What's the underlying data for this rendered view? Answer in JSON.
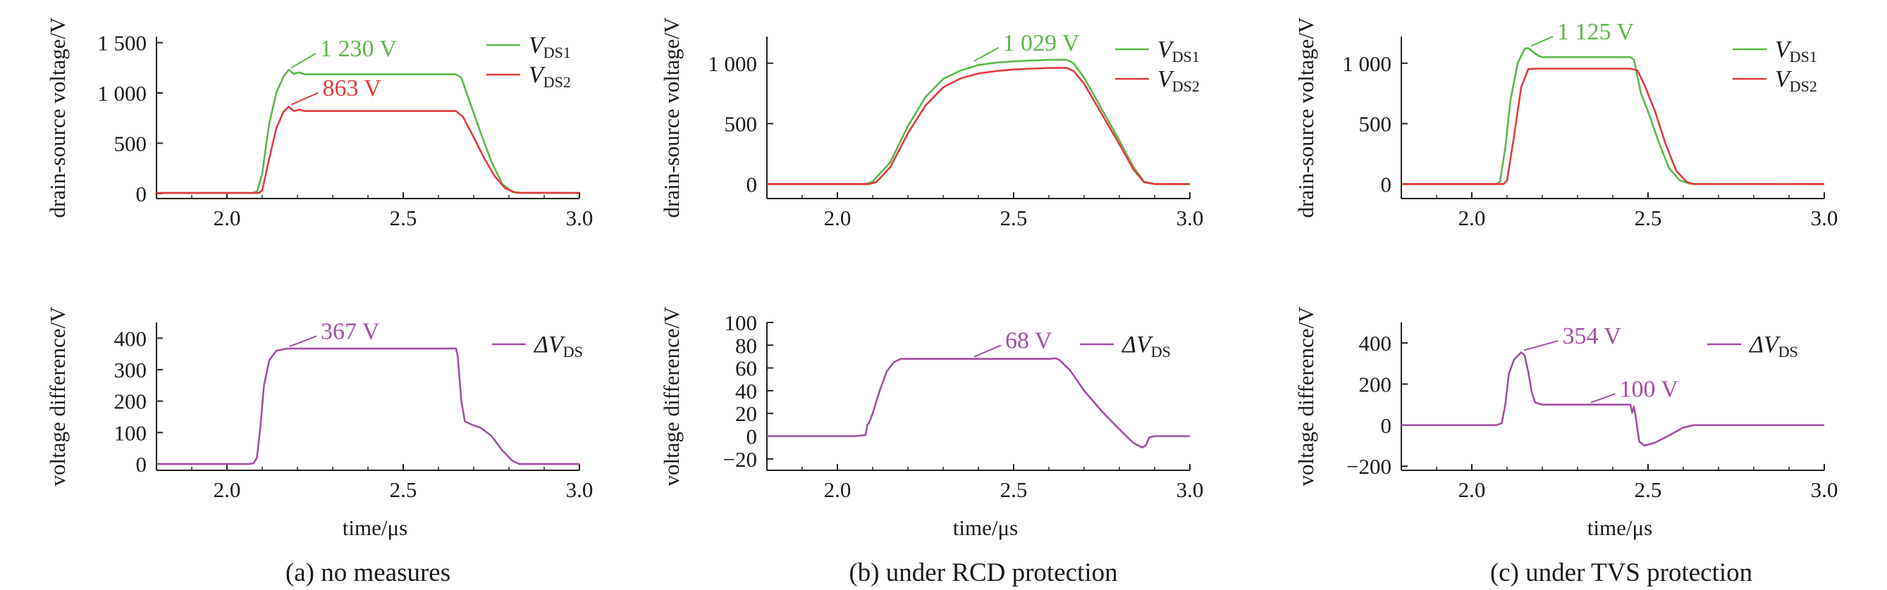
{
  "chart_data": [
    {
      "type": "line",
      "panel": "a",
      "ylabel": "drain-source voltage/V",
      "xlim": [
        1.8,
        3.0
      ],
      "ylim": [
        -50,
        1560
      ],
      "x_ticks": [
        "2.0",
        "2.5",
        "3.0"
      ],
      "x_tick_values": [
        2.0,
        2.5,
        3.0
      ],
      "y_ticks": [
        "0",
        "500",
        "1 000",
        "1 500"
      ],
      "y_tick_values": [
        0,
        500,
        1000,
        1500
      ],
      "legend": "top-right",
      "series": [
        {
          "name": "V_DS1",
          "color": "#5bb848",
          "points": [
            [
              1.8,
              5
            ],
            [
              2.07,
              5
            ],
            [
              2.085,
              20
            ],
            [
              2.1,
              200
            ],
            [
              2.12,
              700
            ],
            [
              2.14,
              1000
            ],
            [
              2.16,
              1160
            ],
            [
              2.175,
              1230
            ],
            [
              2.19,
              1190
            ],
            [
              2.205,
              1205
            ],
            [
              2.22,
              1185
            ],
            [
              2.25,
              1185
            ],
            [
              2.65,
              1185
            ],
            [
              2.665,
              1150
            ],
            [
              2.69,
              900
            ],
            [
              2.72,
              600
            ],
            [
              2.75,
              320
            ],
            [
              2.78,
              100
            ],
            [
              2.81,
              15
            ],
            [
              2.84,
              5
            ],
            [
              3.0,
              5
            ]
          ]
        },
        {
          "name": "V_DS2",
          "color": "#e03a3e",
          "points": [
            [
              1.8,
              5
            ],
            [
              2.09,
              5
            ],
            [
              2.1,
              30
            ],
            [
              2.12,
              350
            ],
            [
              2.14,
              650
            ],
            [
              2.16,
              810
            ],
            [
              2.175,
              863
            ],
            [
              2.19,
              820
            ],
            [
              2.205,
              835
            ],
            [
              2.22,
              820
            ],
            [
              2.25,
              820
            ],
            [
              2.65,
              820
            ],
            [
              2.67,
              760
            ],
            [
              2.7,
              560
            ],
            [
              2.73,
              350
            ],
            [
              2.76,
              170
            ],
            [
              2.79,
              50
            ],
            [
              2.82,
              8
            ],
            [
              3.0,
              5
            ]
          ]
        }
      ],
      "annotations": [
        {
          "text": "1 230 V",
          "x": 2.175,
          "y": 1230,
          "color": "#5bb848"
        },
        {
          "text": "863 V",
          "x": 2.175,
          "y": 863,
          "color": "#e03a3e"
        }
      ],
      "legend_labels": [
        {
          "main": "V",
          "sub": "DS1"
        },
        {
          "main": "V",
          "sub": "DS2"
        }
      ]
    },
    {
      "type": "line",
      "panel": "a",
      "ylabel": "voltage difference/V",
      "xlabel": "time/μs",
      "xlim": [
        1.8,
        3.0
      ],
      "ylim": [
        -20,
        450
      ],
      "x_ticks": [
        "2.0",
        "2.5",
        "3.0"
      ],
      "x_tick_values": [
        2.0,
        2.5,
        3.0
      ],
      "y_ticks": [
        "0",
        "100",
        "200",
        "300",
        "400"
      ],
      "y_tick_values": [
        0,
        100,
        200,
        300,
        400
      ],
      "legend": "top-right",
      "series": [
        {
          "name": "ΔV_DS",
          "color": "#a24fa5",
          "points": [
            [
              1.8,
              0
            ],
            [
              2.06,
              0
            ],
            [
              2.075,
              2
            ],
            [
              2.085,
              20
            ],
            [
              2.095,
              120
            ],
            [
              2.105,
              250
            ],
            [
              2.12,
              330
            ],
            [
              2.14,
              360
            ],
            [
              2.17,
              367
            ],
            [
              2.65,
              367
            ],
            [
              2.655,
              340
            ],
            [
              2.665,
              200
            ],
            [
              2.675,
              135
            ],
            [
              2.695,
              125
            ],
            [
              2.72,
              115
            ],
            [
              2.75,
              90
            ],
            [
              2.78,
              45
            ],
            [
              2.81,
              10
            ],
            [
              2.83,
              0
            ],
            [
              3.0,
              0
            ]
          ]
        }
      ],
      "annotations": [
        {
          "text": "367 V",
          "x": 2.17,
          "y": 367,
          "color": "#a24fa5"
        }
      ],
      "legend_labels": [
        {
          "main": "ΔV",
          "sub": "DS"
        }
      ]
    },
    {
      "type": "line",
      "panel": "b",
      "ylabel": "drain-source voltage/V",
      "xlim": [
        1.8,
        3.0
      ],
      "ylim": [
        -120,
        1220
      ],
      "x_ticks": [
        "2.0",
        "2.5",
        "3.0"
      ],
      "x_tick_values": [
        2.0,
        2.5,
        3.0
      ],
      "y_ticks": [
        "0",
        "500",
        "1 000"
      ],
      "y_tick_values": [
        0,
        500,
        1000
      ],
      "legend": "top-right",
      "series": [
        {
          "name": "V_DS1",
          "color": "#5bb848",
          "points": [
            [
              1.8,
              0
            ],
            [
              2.08,
              0
            ],
            [
              2.1,
              20
            ],
            [
              2.15,
              180
            ],
            [
              2.2,
              480
            ],
            [
              2.25,
              720
            ],
            [
              2.3,
              870
            ],
            [
              2.35,
              940
            ],
            [
              2.4,
              985
            ],
            [
              2.45,
              1005
            ],
            [
              2.5,
              1015
            ],
            [
              2.55,
              1022
            ],
            [
              2.6,
              1027
            ],
            [
              2.65,
              1029
            ],
            [
              2.67,
              1000
            ],
            [
              2.7,
              880
            ],
            [
              2.75,
              620
            ],
            [
              2.8,
              360
            ],
            [
              2.84,
              140
            ],
            [
              2.87,
              20
            ],
            [
              2.9,
              0
            ],
            [
              3.0,
              0
            ]
          ]
        },
        {
          "name": "V_DS2",
          "color": "#e03a3e",
          "points": [
            [
              1.8,
              0
            ],
            [
              2.09,
              0
            ],
            [
              2.11,
              15
            ],
            [
              2.15,
              140
            ],
            [
              2.2,
              420
            ],
            [
              2.25,
              650
            ],
            [
              2.3,
              800
            ],
            [
              2.35,
              875
            ],
            [
              2.4,
              915
            ],
            [
              2.45,
              935
            ],
            [
              2.5,
              948
            ],
            [
              2.55,
              955
            ],
            [
              2.6,
              960
            ],
            [
              2.65,
              962
            ],
            [
              2.67,
              935
            ],
            [
              2.7,
              830
            ],
            [
              2.75,
              580
            ],
            [
              2.8,
              330
            ],
            [
              2.84,
              120
            ],
            [
              2.87,
              15
            ],
            [
              2.9,
              0
            ],
            [
              3.0,
              0
            ]
          ]
        }
      ],
      "annotations": [
        {
          "text": "1 029 V",
          "x": 2.38,
          "y": 1000,
          "color": "#5bb848"
        }
      ],
      "legend_labels": [
        {
          "main": "V",
          "sub": "DS1"
        },
        {
          "main": "V",
          "sub": "DS2"
        }
      ]
    },
    {
      "type": "line",
      "panel": "b",
      "ylabel": "voltage difference/V",
      "xlabel": "time/μs",
      "xlim": [
        1.8,
        3.0
      ],
      "ylim": [
        -30,
        100
      ],
      "x_ticks": [
        "2.0",
        "2.5",
        "3.0"
      ],
      "x_tick_values": [
        2.0,
        2.5,
        3.0
      ],
      "y_ticks": [
        "−20",
        "0",
        "20",
        "40",
        "60",
        "80",
        "100"
      ],
      "y_tick_values": [
        -20,
        0,
        20,
        40,
        60,
        80,
        100
      ],
      "legend": "top-right",
      "series": [
        {
          "name": "ΔV_DS",
          "color": "#a24fa5",
          "points": [
            [
              1.8,
              0
            ],
            [
              2.05,
              0
            ],
            [
              2.08,
              1
            ],
            [
              2.085,
              10
            ],
            [
              2.09,
              12
            ],
            [
              2.1,
              20
            ],
            [
              2.12,
              40
            ],
            [
              2.14,
              57
            ],
            [
              2.16,
              65
            ],
            [
              2.18,
              68
            ],
            [
              2.6,
              68
            ],
            [
              2.62,
              68.5
            ],
            [
              2.63,
              67
            ],
            [
              2.66,
              58
            ],
            [
              2.7,
              40
            ],
            [
              2.75,
              22
            ],
            [
              2.8,
              6
            ],
            [
              2.84,
              -6
            ],
            [
              2.865,
              -10
            ],
            [
              2.875,
              -8
            ],
            [
              2.885,
              -1
            ],
            [
              2.9,
              0
            ],
            [
              3.0,
              0
            ]
          ]
        }
      ],
      "annotations": [
        {
          "text": "68 V",
          "x": 2.38,
          "y": 68,
          "color": "#a24fa5"
        }
      ],
      "legend_labels": [
        {
          "main": "ΔV",
          "sub": "DS"
        }
      ]
    },
    {
      "type": "line",
      "panel": "c",
      "ylabel": "drain-source voltage/V",
      "xlim": [
        1.8,
        3.0
      ],
      "ylim": [
        -120,
        1220
      ],
      "x_ticks": [
        "2.0",
        "2.5",
        "3.0"
      ],
      "x_tick_values": [
        2.0,
        2.5,
        3.0
      ],
      "y_ticks": [
        "0",
        "500",
        "1 000"
      ],
      "y_tick_values": [
        0,
        500,
        1000
      ],
      "legend": "top-right",
      "series": [
        {
          "name": "V_DS1",
          "color": "#5bb848",
          "points": [
            [
              1.8,
              0
            ],
            [
              2.07,
              0
            ],
            [
              2.08,
              20
            ],
            [
              2.095,
              300
            ],
            [
              2.11,
              700
            ],
            [
              2.13,
              1000
            ],
            [
              2.15,
              1120
            ],
            [
              2.16,
              1125
            ],
            [
              2.175,
              1090
            ],
            [
              2.19,
              1060
            ],
            [
              2.2,
              1050
            ],
            [
              2.45,
              1050
            ],
            [
              2.46,
              1030
            ],
            [
              2.48,
              750
            ],
            [
              2.5,
              600
            ],
            [
              2.53,
              350
            ],
            [
              2.56,
              130
            ],
            [
              2.59,
              30
            ],
            [
              2.62,
              2
            ],
            [
              3.0,
              0
            ]
          ]
        },
        {
          "name": "V_DS2",
          "color": "#e03a3e",
          "points": [
            [
              1.8,
              0
            ],
            [
              2.09,
              0
            ],
            [
              2.1,
              30
            ],
            [
              2.12,
              400
            ],
            [
              2.14,
              800
            ],
            [
              2.16,
              950
            ],
            [
              2.18,
              955
            ],
            [
              2.45,
              955
            ],
            [
              2.47,
              940
            ],
            [
              2.49,
              820
            ],
            [
              2.52,
              600
            ],
            [
              2.55,
              330
            ],
            [
              2.58,
              110
            ],
            [
              2.61,
              15
            ],
            [
              2.63,
              0
            ],
            [
              3.0,
              0
            ]
          ]
        }
      ],
      "annotations": [
        {
          "text": "1 125 V",
          "x": 2.16,
          "y": 1125,
          "color": "#5bb848"
        }
      ],
      "legend_labels": [
        {
          "main": "V",
          "sub": "DS1"
        },
        {
          "main": "V",
          "sub": "DS2"
        }
      ]
    },
    {
      "type": "line",
      "panel": "c",
      "ylabel": "voltage difference/V",
      "xlabel": "time/μs",
      "xlim": [
        1.8,
        3.0
      ],
      "ylim": [
        -220,
        500
      ],
      "x_ticks": [
        "2.0",
        "2.5",
        "3.0"
      ],
      "x_tick_values": [
        2.0,
        2.5,
        3.0
      ],
      "y_ticks": [
        "−200",
        "0",
        "200",
        "400"
      ],
      "y_tick_values": [
        -200,
        0,
        200,
        400
      ],
      "legend": "top-right",
      "series": [
        {
          "name": "ΔV_DS",
          "color": "#a24fa5",
          "points": [
            [
              1.8,
              0
            ],
            [
              2.07,
              0
            ],
            [
              2.085,
              10
            ],
            [
              2.095,
              100
            ],
            [
              2.105,
              250
            ],
            [
              2.12,
              320
            ],
            [
              2.14,
              354
            ],
            [
              2.15,
              340
            ],
            [
              2.16,
              260
            ],
            [
              2.17,
              160
            ],
            [
              2.18,
              110
            ],
            [
              2.2,
              100
            ],
            [
              2.45,
              100
            ],
            [
              2.455,
              60
            ],
            [
              2.46,
              90
            ],
            [
              2.465,
              40
            ],
            [
              2.475,
              -80
            ],
            [
              2.49,
              -100
            ],
            [
              2.52,
              -85
            ],
            [
              2.56,
              -50
            ],
            [
              2.6,
              -12
            ],
            [
              2.63,
              0
            ],
            [
              3.0,
              0
            ]
          ]
        }
      ],
      "annotations": [
        {
          "text": "354 V",
          "x": 2.14,
          "y": 354,
          "color": "#a24fa5"
        },
        {
          "text": "100 V",
          "x": 2.33,
          "y": 100,
          "color": "#a24fa5"
        }
      ],
      "legend_labels": [
        {
          "main": "ΔV",
          "sub": "DS"
        }
      ]
    }
  ],
  "captions": [
    "(a) no measures",
    "(b) under RCD protection",
    "(c) under TVS protection"
  ]
}
